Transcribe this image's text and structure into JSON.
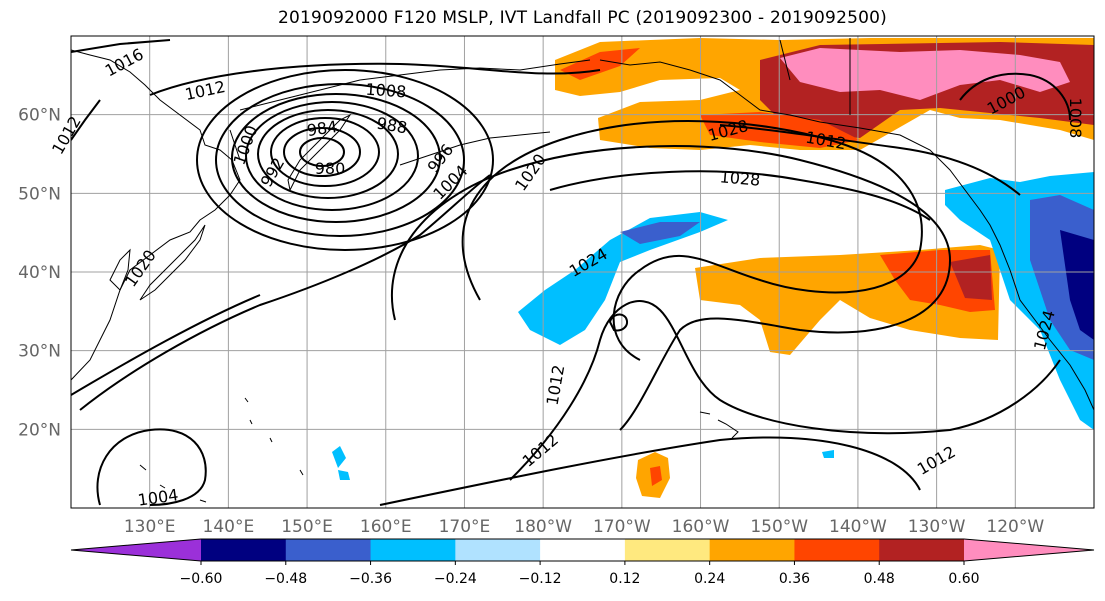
{
  "title": "2019092000 F120 MSLP, IVT Landfall PC (2019092300 - 2019092500)",
  "longitude_labels": [
    "130°E",
    "140°E",
    "150°E",
    "160°E",
    "170°E",
    "180°W",
    "170°W",
    "160°W",
    "150°W",
    "140°W",
    "130°W",
    "120°W"
  ],
  "latitude_labels": [
    "20°N",
    "30°N",
    "40°N",
    "50°N",
    "60°N"
  ],
  "map": {
    "extent": {
      "lon_min": 120,
      "lon_max": 250,
      "lat_min": 10,
      "lat_max": 70
    },
    "grid": true,
    "fill_colors": {
      "orange": "#ffa500",
      "dark_orange": "#ff4500",
      "firebrick": "#b22222",
      "pink": "#ff8dbe",
      "light_yellow": "#ffe97f",
      "deep_sky_blue": "#00bfff",
      "light_sky_blue": "#b0e2ff",
      "royal_blue": "#3a5fcd",
      "navy": "#000080"
    },
    "pressure_contour_labels": [
      {
        "text": "1016"
      },
      {
        "text": "1012"
      },
      {
        "text": "1008"
      },
      {
        "text": "1000"
      },
      {
        "text": "984"
      },
      {
        "text": "988"
      },
      {
        "text": "992"
      },
      {
        "text": "980"
      },
      {
        "text": "996"
      },
      {
        "text": "1004"
      },
      {
        "text": "1020"
      },
      {
        "text": "1028"
      },
      {
        "text": "1012"
      },
      {
        "text": "1024"
      },
      {
        "text": "1012"
      },
      {
        "text": "1012"
      },
      {
        "text": "1012"
      },
      {
        "text": "1004"
      },
      {
        "text": "1000"
      },
      {
        "text": "1008"
      },
      {
        "text": "1024"
      },
      {
        "text": "1012"
      },
      {
        "text": "1020"
      },
      {
        "text": "1028"
      }
    ]
  },
  "colorbar": {
    "colors": [
      "#9b30d9",
      "#000080",
      "#3a5fcd",
      "#00bfff",
      "#b0e2ff",
      "#ffffff",
      "#ffe97f",
      "#ffa500",
      "#ff4500",
      "#b22222",
      "#ff8dbe"
    ],
    "tick_labels": [
      "−0.60",
      "−0.48",
      "−0.36",
      "−0.24",
      "−0.12",
      "0.12",
      "0.24",
      "0.36",
      "0.48",
      "0.60"
    ]
  }
}
